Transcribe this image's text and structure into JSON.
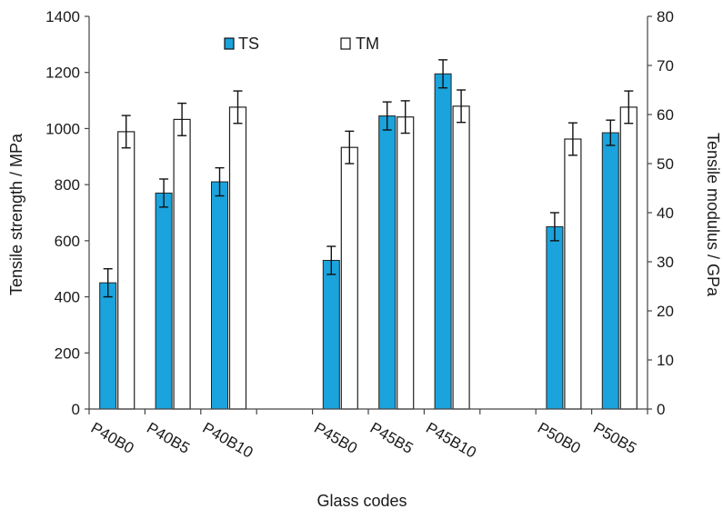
{
  "chart_data": {
    "type": "bar",
    "title": "",
    "xlabel": "Glass codes",
    "ylabel_left": "Tensile strength / MPa",
    "ylabel_right": "Tensile modulus / GPa",
    "ylim_left": [
      0,
      1400
    ],
    "ylim_right": [
      0,
      80
    ],
    "yticks_left": [
      0,
      200,
      400,
      600,
      800,
      1000,
      1200,
      1400
    ],
    "yticks_right": [
      0,
      10,
      20,
      30,
      40,
      50,
      60,
      70,
      80
    ],
    "grid": false,
    "legend_position": "top-center",
    "categories": [
      "P40B0",
      "P40B5",
      "P40B10",
      "",
      "P45B0",
      "P45B5",
      "P45B10",
      "",
      "P50B0",
      "P50B5"
    ],
    "series": [
      {
        "name": "TS",
        "axis": "left",
        "color": "#1aa3dc",
        "values": [
          450,
          770,
          810,
          null,
          530,
          1045,
          1195,
          null,
          650,
          985
        ],
        "errors": [
          50,
          50,
          50,
          null,
          50,
          50,
          50,
          null,
          50,
          45
        ]
      },
      {
        "name": "TM",
        "axis": "right",
        "color": "#ffffff",
        "values": [
          56.5,
          59,
          61.5,
          null,
          53.3,
          59.5,
          61.7,
          null,
          55,
          61.5
        ],
        "errors": [
          3.3,
          3.3,
          3.3,
          null,
          3.3,
          3.3,
          3.3,
          null,
          3.3,
          3.3
        ]
      }
    ]
  }
}
